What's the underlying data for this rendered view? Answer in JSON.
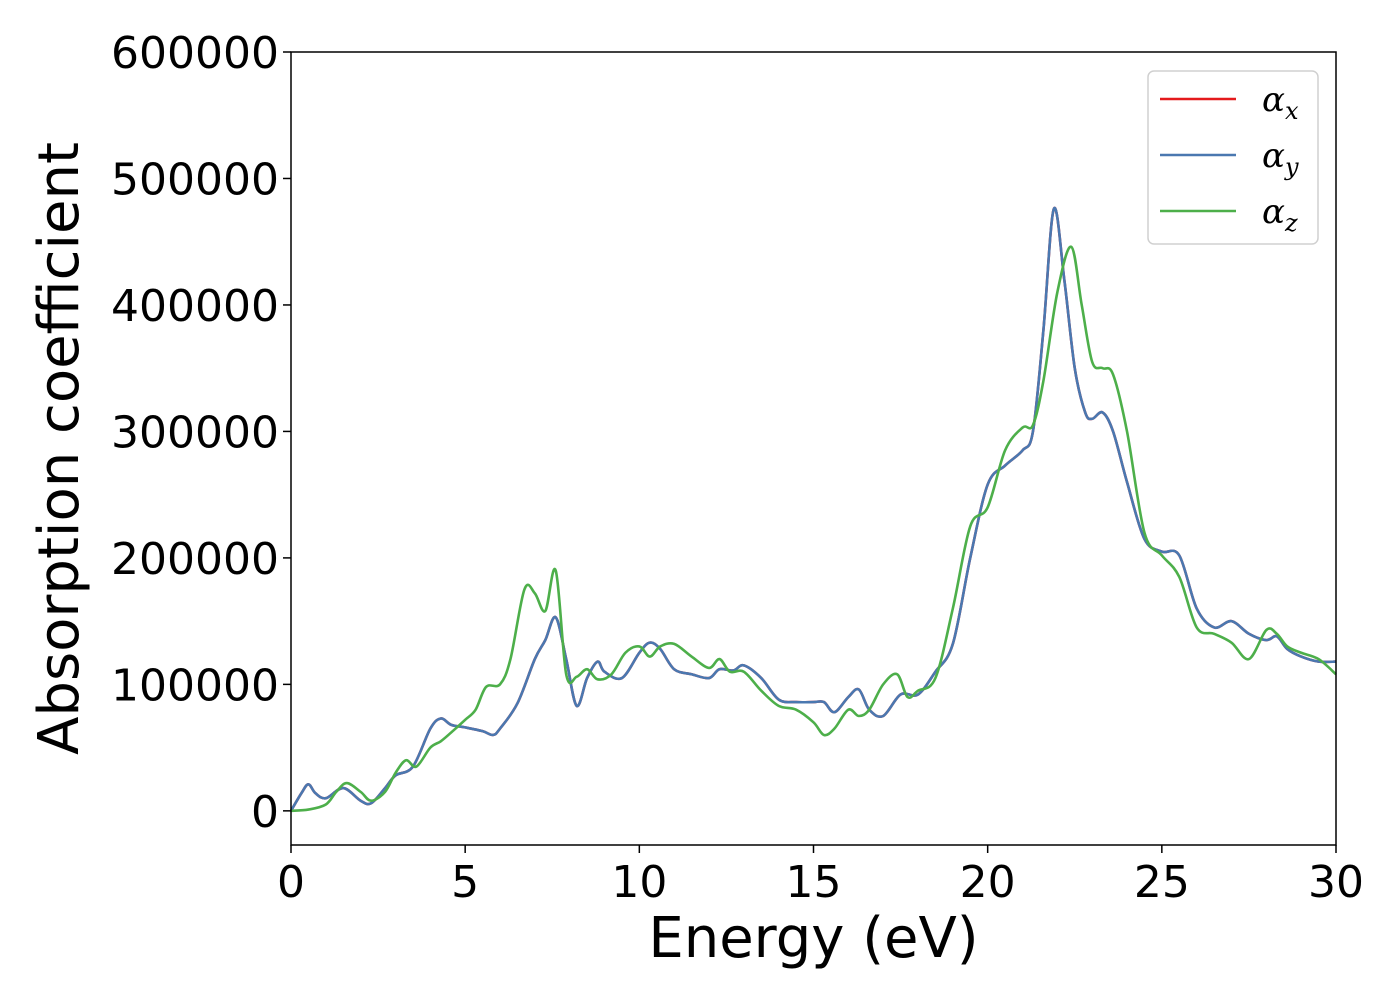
{
  "chart_data": {
    "type": "line",
    "xlabel": "Energy (eV)",
    "ylabel": "Absorption coefficient",
    "xlim": [
      0,
      30
    ],
    "ylim": [
      -27000,
      600000
    ],
    "x_ticks": [
      "0",
      "5",
      "10",
      "15",
      "20",
      "25",
      "30"
    ],
    "y_ticks": [
      "0",
      "100000",
      "200000",
      "300000",
      "400000",
      "500000",
      "600000"
    ],
    "grid": false,
    "legend_position": "top-right",
    "series": [
      {
        "name": "α_x",
        "base": "α",
        "sub": "x",
        "color": "#e41a1c",
        "x": [
          0,
          0.3,
          0.5,
          0.7,
          1.0,
          1.5,
          2.0,
          2.3,
          2.7,
          3.0,
          3.5,
          4.0,
          4.3,
          4.6,
          5.0,
          5.5,
          5.8,
          6.0,
          6.5,
          7.0,
          7.3,
          7.6,
          7.9,
          8.2,
          8.5,
          8.8,
          9.0,
          9.5,
          10.0,
          10.3,
          10.6,
          11.0,
          11.5,
          12.0,
          12.3,
          12.7,
          13.0,
          13.5,
          14.0,
          14.5,
          15.0,
          15.3,
          15.6,
          16.0,
          16.3,
          16.6,
          17.0,
          17.5,
          18.0,
          18.5,
          19.0,
          19.5,
          20.0,
          20.5,
          21.0,
          21.3,
          21.6,
          21.9,
          22.2,
          22.5,
          22.8,
          23.0,
          23.3,
          23.6,
          24.0,
          24.5,
          25.0,
          25.5,
          26.0,
          26.5,
          27.0,
          27.5,
          28.0,
          28.3,
          28.6,
          29.0,
          29.5,
          30.0
        ],
        "y": [
          0,
          14000,
          21000,
          14000,
          10000,
          18000,
          8000,
          6000,
          18000,
          28000,
          35000,
          65000,
          73000,
          68000,
          66000,
          63000,
          60000,
          65000,
          85000,
          120000,
          135000,
          153000,
          120000,
          83000,
          105000,
          118000,
          110000,
          105000,
          125000,
          133000,
          128000,
          112000,
          108000,
          105000,
          112000,
          111000,
          115000,
          105000,
          88000,
          86000,
          86000,
          86000,
          78000,
          90000,
          96000,
          80000,
          75000,
          92000,
          92000,
          110000,
          132000,
          200000,
          258000,
          273000,
          285000,
          300000,
          380000,
          476000,
          420000,
          350000,
          315000,
          310000,
          315000,
          300000,
          260000,
          215000,
          205000,
          202000,
          160000,
          145000,
          150000,
          140000,
          135000,
          138000,
          128000,
          122000,
          118000,
          118000
        ]
      },
      {
        "name": "α_y",
        "base": "α",
        "sub": "y",
        "color": "#4a78b0",
        "x": [
          0,
          0.3,
          0.5,
          0.7,
          1.0,
          1.5,
          2.0,
          2.3,
          2.7,
          3.0,
          3.5,
          4.0,
          4.3,
          4.6,
          5.0,
          5.5,
          5.8,
          6.0,
          6.5,
          7.0,
          7.3,
          7.6,
          7.9,
          8.2,
          8.5,
          8.8,
          9.0,
          9.5,
          10.0,
          10.3,
          10.6,
          11.0,
          11.5,
          12.0,
          12.3,
          12.7,
          13.0,
          13.5,
          14.0,
          14.5,
          15.0,
          15.3,
          15.6,
          16.0,
          16.3,
          16.6,
          17.0,
          17.5,
          18.0,
          18.5,
          19.0,
          19.5,
          20.0,
          20.5,
          21.0,
          21.3,
          21.6,
          21.9,
          22.2,
          22.5,
          22.8,
          23.0,
          23.3,
          23.6,
          24.0,
          24.5,
          25.0,
          25.5,
          26.0,
          26.5,
          27.0,
          27.5,
          28.0,
          28.3,
          28.6,
          29.0,
          29.5,
          30.0
        ],
        "y": [
          0,
          14000,
          21000,
          14000,
          10000,
          18000,
          8000,
          6000,
          18000,
          28000,
          35000,
          65000,
          73000,
          68000,
          66000,
          63000,
          60000,
          65000,
          85000,
          120000,
          135000,
          153000,
          120000,
          83000,
          105000,
          118000,
          110000,
          105000,
          125000,
          133000,
          128000,
          112000,
          108000,
          105000,
          112000,
          111000,
          115000,
          105000,
          88000,
          86000,
          86000,
          86000,
          78000,
          90000,
          96000,
          80000,
          75000,
          92000,
          92000,
          110000,
          132000,
          200000,
          258000,
          273000,
          285000,
          300000,
          380000,
          476000,
          420000,
          350000,
          315000,
          310000,
          315000,
          300000,
          260000,
          215000,
          205000,
          202000,
          160000,
          145000,
          150000,
          140000,
          135000,
          138000,
          128000,
          122000,
          118000,
          118000
        ]
      },
      {
        "name": "α_z",
        "base": "α",
        "sub": "z",
        "color": "#4daf4a",
        "x": [
          0,
          0.5,
          1.0,
          1.3,
          1.6,
          2.0,
          2.3,
          2.7,
          3.0,
          3.3,
          3.6,
          4.0,
          4.3,
          4.6,
          5.0,
          5.3,
          5.6,
          6.0,
          6.3,
          6.7,
          7.0,
          7.3,
          7.6,
          7.9,
          8.2,
          8.5,
          8.8,
          9.2,
          9.6,
          10.0,
          10.3,
          10.6,
          11.0,
          11.5,
          12.0,
          12.3,
          12.6,
          13.0,
          13.5,
          14.0,
          14.5,
          15.0,
          15.3,
          15.6,
          16.0,
          16.3,
          16.6,
          17.0,
          17.4,
          17.7,
          18.0,
          18.5,
          19.0,
          19.5,
          20.0,
          20.5,
          21.0,
          21.3,
          21.6,
          22.0,
          22.4,
          22.7,
          23.0,
          23.3,
          23.6,
          24.0,
          24.5,
          25.0,
          25.5,
          26.0,
          26.5,
          27.0,
          27.5,
          28.0,
          28.3,
          28.6,
          29.0,
          29.5,
          30.0
        ],
        "y": [
          0,
          1000,
          5000,
          15000,
          22000,
          15000,
          8000,
          15000,
          30000,
          40000,
          35000,
          50000,
          55000,
          62000,
          72000,
          80000,
          98000,
          100000,
          120000,
          175000,
          172000,
          158000,
          190000,
          108000,
          106000,
          112000,
          104000,
          108000,
          125000,
          130000,
          122000,
          130000,
          132000,
          122000,
          113000,
          120000,
          110000,
          110000,
          95000,
          83000,
          80000,
          70000,
          60000,
          65000,
          80000,
          75000,
          80000,
          100000,
          108000,
          90000,
          95000,
          105000,
          160000,
          225000,
          240000,
          285000,
          303000,
          305000,
          340000,
          410000,
          446000,
          400000,
          355000,
          350000,
          345000,
          300000,
          220000,
          202000,
          185000,
          145000,
          140000,
          133000,
          120000,
          143000,
          140000,
          130000,
          125000,
          120000,
          108000
        ]
      }
    ]
  }
}
